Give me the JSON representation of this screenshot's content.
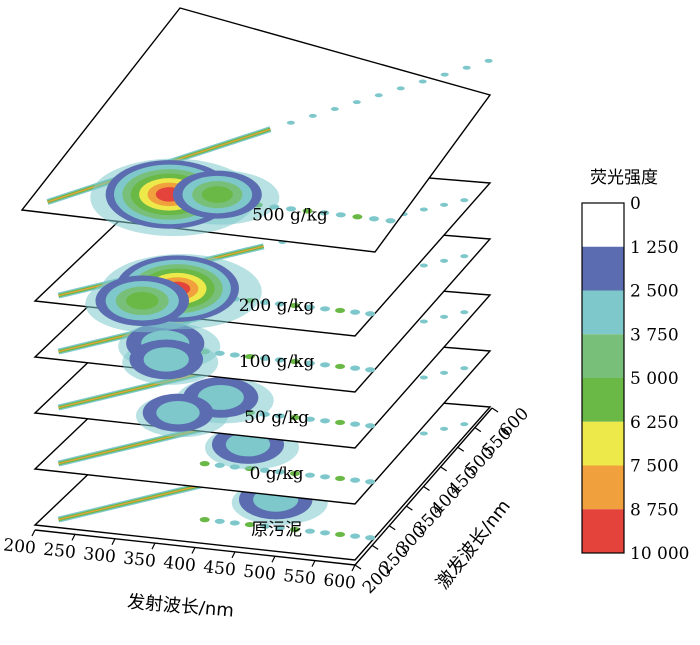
{
  "chart_data": {
    "type": "contour",
    "x_axis": {
      "label": "发射波长/nm",
      "ticks": [
        200,
        250,
        300,
        350,
        400,
        450,
        500,
        550,
        600
      ],
      "range": [
        200,
        600
      ]
    },
    "y_axis": {
      "label": "激发波长/nm",
      "ticks": [
        200,
        250,
        300,
        350,
        400,
        450,
        500,
        550,
        600
      ],
      "range": [
        200,
        600
      ]
    },
    "colorbar": {
      "title": "荧光强度",
      "levels": [
        "0",
        "1 250",
        "2 500",
        "3 750",
        "5 000",
        "6 250",
        "7 500",
        "8 750",
        "10 000"
      ],
      "colors": [
        "#ffffff",
        "#5b6db0",
        "#7ec8cc",
        "#78c07a",
        "#6ab845",
        "#eee94a",
        "#f0a03c",
        "#e3433a"
      ]
    },
    "slices": [
      {
        "label": "原污泥",
        "peaks": [
          {
            "em": 440,
            "ex": 330,
            "value": 3000
          }
        ]
      },
      {
        "label": "0 g/kg",
        "peaks": [
          {
            "em": 410,
            "ex": 320,
            "value": 2800
          }
        ]
      },
      {
        "label": "50 g/kg",
        "peaks": [
          {
            "em": 390,
            "ex": 290,
            "value": 3200
          },
          {
            "em": 360,
            "ex": 240,
            "value": 2600
          }
        ]
      },
      {
        "label": "100 g/kg",
        "peaks": [
          {
            "em": 330,
            "ex": 270,
            "value": 3600
          },
          {
            "em": 350,
            "ex": 230,
            "value": 3000
          }
        ]
      },
      {
        "label": "200 g/kg",
        "peaks": [
          {
            "em": 345,
            "ex": 270,
            "value": 9500
          },
          {
            "em": 320,
            "ex": 230,
            "value": 5600
          }
        ]
      },
      {
        "label": "500 g/kg",
        "peaks": [
          {
            "em": 340,
            "ex": 260,
            "value": 10000
          },
          {
            "em": 390,
            "ex": 270,
            "value": 5000
          }
        ]
      }
    ]
  }
}
